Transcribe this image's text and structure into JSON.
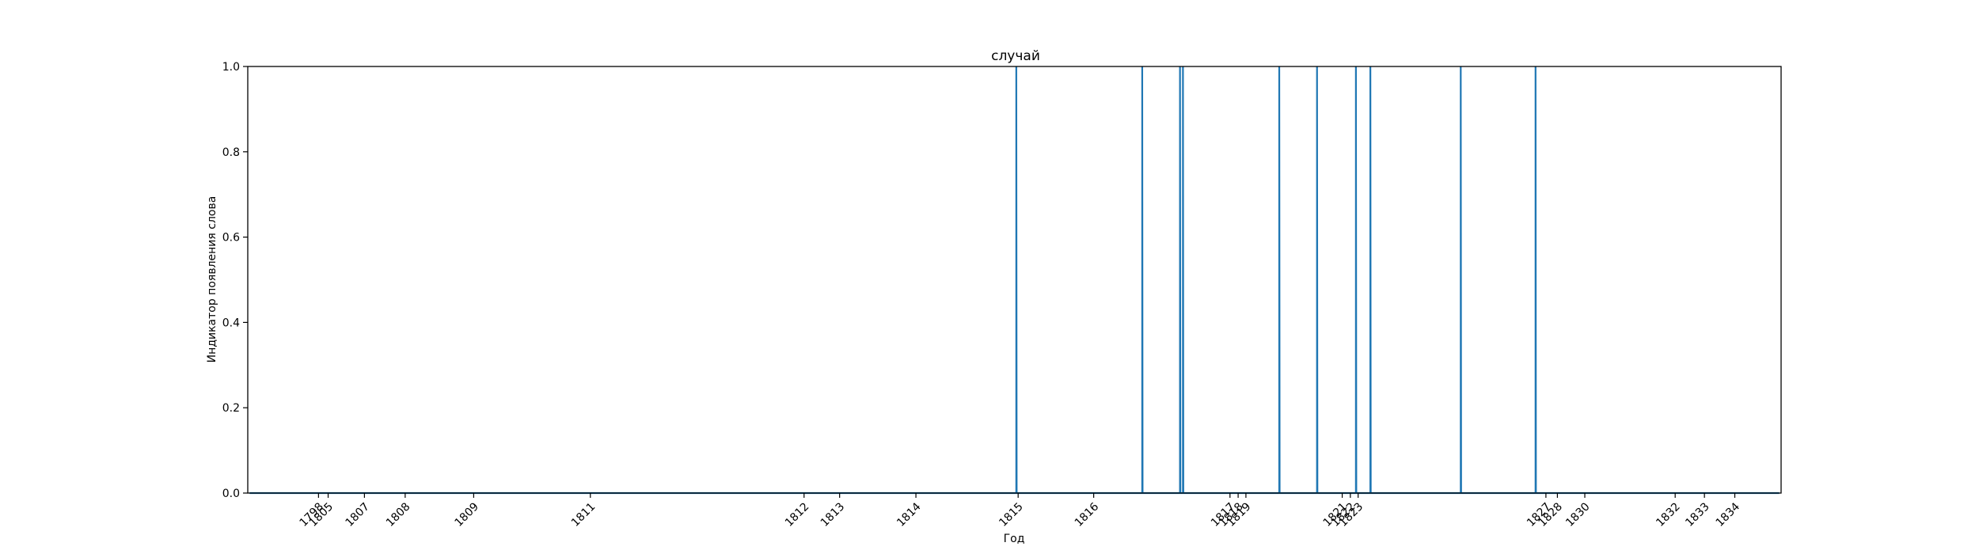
{
  "chart_data": {
    "type": "line",
    "title": "случай",
    "xlabel": "Год",
    "ylabel": "Индикатор появления слова",
    "ylim": [
      0,
      1
    ],
    "xlim": [
      1796.45,
      1837.85
    ],
    "yticks": [
      0,
      0.2,
      0.4,
      0.6,
      0.8,
      1
    ],
    "ytick_labels": [
      "0.0",
      "0.2",
      "0.4",
      "0.6",
      "0.8",
      "1.0"
    ],
    "xticks": [
      {
        "value": 1798.36,
        "label": "1798"
      },
      {
        "value": 1798.62,
        "label": "1805"
      },
      {
        "value": 1799.6,
        "label": "1807"
      },
      {
        "value": 1800.7,
        "label": "1808"
      },
      {
        "value": 1802.55,
        "label": "1809"
      },
      {
        "value": 1805.7,
        "label": "1811"
      },
      {
        "value": 1811.47,
        "label": "1812"
      },
      {
        "value": 1812.43,
        "label": "1813"
      },
      {
        "value": 1814.49,
        "label": "1814"
      },
      {
        "value": 1817.25,
        "label": "1815"
      },
      {
        "value": 1819.29,
        "label": "1816"
      },
      {
        "value": 1822.97,
        "label": "1817"
      },
      {
        "value": 1823.19,
        "label": "1818"
      },
      {
        "value": 1823.4,
        "label": "1819"
      },
      {
        "value": 1826.0,
        "label": "1821"
      },
      {
        "value": 1826.22,
        "label": "1822"
      },
      {
        "value": 1826.43,
        "label": "1823"
      },
      {
        "value": 1831.5,
        "label": "1827"
      },
      {
        "value": 1831.81,
        "label": "1828"
      },
      {
        "value": 1832.55,
        "label": "1830"
      },
      {
        "value": 1834.99,
        "label": "1832"
      },
      {
        "value": 1835.78,
        "label": "1833"
      },
      {
        "value": 1836.6,
        "label": "1834"
      }
    ],
    "series": [
      {
        "color": "#1f77b4",
        "x": [
          1796.5,
          1817.2,
          1817.2,
          1817.21,
          1820.6,
          1820.6,
          1820.61,
          1821.62,
          1821.62,
          1821.63,
          1821.7,
          1821.7,
          1821.71,
          1824.3,
          1824.3,
          1824.31,
          1825.32,
          1825.32,
          1825.33,
          1826.37,
          1826.37,
          1826.38,
          1826.76,
          1826.76,
          1826.77,
          1829.2,
          1829.2,
          1829.21,
          1831.22,
          1831.22,
          1831.23,
          1837.8
        ],
        "y": [
          0,
          0,
          1,
          0,
          0,
          1,
          0,
          0,
          1,
          0,
          0,
          1,
          0,
          0,
          1,
          0,
          0,
          1,
          0,
          0,
          1,
          0,
          0,
          1,
          0,
          0,
          1,
          0,
          0,
          1,
          0,
          0
        ]
      }
    ]
  }
}
